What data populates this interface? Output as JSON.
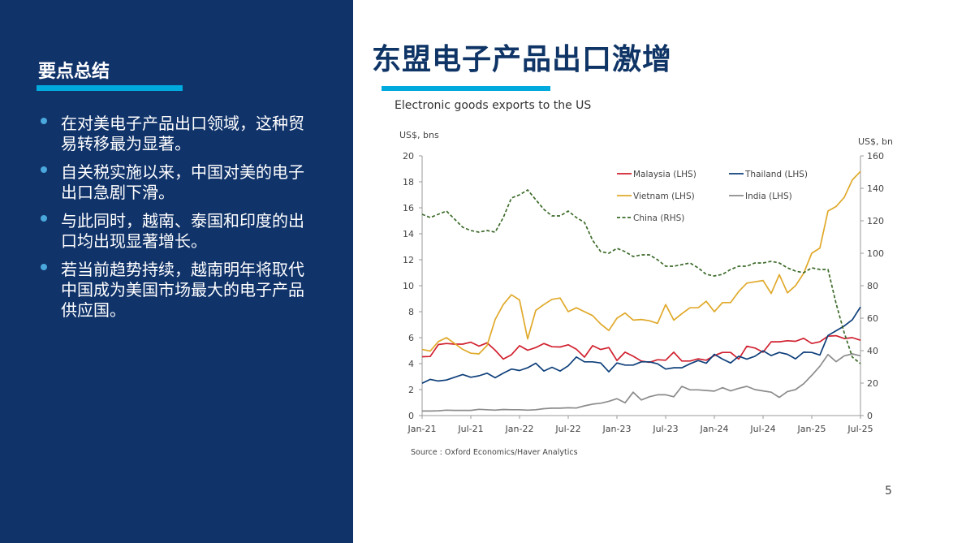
{
  "left_panel": {
    "title": "要点总结",
    "bullets": [
      "在对美电子产品出口领域，这种贸易转移最为显著。",
      "自关税实施以来，中国对美的电子出口急剧下滑。",
      "与此同时，越南、泰国和印度的出口均出现显著增长。",
      "若当前趋势持续，越南明年将取代中国成为美国市场最大的电子产品供应国。"
    ]
  },
  "main": {
    "title": "东盟电子产品出口激增",
    "chart_title": "Electronic goods exports to the US",
    "source": "Source : Oxford Economics/Haver Analytics",
    "page_number": "5"
  },
  "colors": {
    "panel": "#10336a",
    "accent": "#00aadd",
    "malaysia": "#d0202e",
    "thailand": "#0e3f7a",
    "vietnam": "#e0a92a",
    "india": "#8c8c8c",
    "china": "#3d6b2a"
  },
  "chart_data": {
    "type": "line",
    "title": "Electronic goods exports to the US",
    "x_start": "Jan-21",
    "x_end": "Jul-25",
    "frequency": "monthly",
    "x_tick_labels": [
      "Jan-21",
      "Jul-21",
      "Jan-22",
      "Jul-22",
      "Jan-23",
      "Jul-23",
      "Jan-24",
      "Jul-24",
      "Jan-25",
      "Jul-25"
    ],
    "ylabel_left": "US$, bns",
    "ylabel_right": "US$, bns",
    "ylim_left": [
      0,
      20
    ],
    "yticks_left": [
      0,
      2,
      4,
      6,
      8,
      10,
      12,
      14,
      16,
      18,
      20
    ],
    "ylim_right": [
      0,
      160
    ],
    "yticks_right": [
      0,
      20,
      40,
      60,
      80,
      100,
      120,
      140,
      160
    ],
    "grid": false,
    "legend_placement": "top-center",
    "series": [
      {
        "name": "Malaysia (LHS)",
        "axis": "left",
        "style": "solid",
        "color": "#d0202e",
        "values": [
          4.53,
          4.55,
          5.47,
          5.55,
          5.5,
          5.5,
          5.65,
          5.35,
          5.6,
          5.03,
          4.35,
          4.68,
          5.38,
          5.03,
          5.24,
          5.55,
          5.3,
          5.28,
          5.45,
          5.11,
          4.5,
          5.38,
          5.09,
          5.24,
          4.24,
          4.88,
          4.57,
          4.2,
          4.1,
          4.3,
          4.26,
          4.88,
          4.2,
          4.2,
          4.37,
          4.26,
          4.62,
          4.86,
          4.86,
          4.35,
          5.34,
          5.2,
          4.88,
          5.68,
          5.68,
          5.76,
          5.72,
          5.95,
          5.55,
          5.68,
          6.11,
          6.15,
          5.93,
          6.0,
          5.8
        ]
      },
      {
        "name": "Thailand (LHS)",
        "axis": "left",
        "style": "solid",
        "color": "#0e3f7a",
        "values": [
          2.49,
          2.79,
          2.66,
          2.74,
          2.95,
          3.16,
          2.95,
          3.06,
          3.26,
          2.91,
          3.26,
          3.58,
          3.47,
          3.68,
          4.03,
          3.43,
          3.72,
          3.43,
          3.83,
          4.51,
          4.14,
          4.14,
          4.05,
          3.37,
          4.05,
          3.89,
          3.89,
          4.14,
          4.14,
          3.99,
          3.58,
          3.68,
          3.68,
          3.99,
          4.24,
          4.03,
          4.72,
          4.35,
          4.05,
          4.57,
          4.35,
          4.57,
          4.99,
          4.62,
          4.86,
          4.72,
          4.37,
          4.88,
          4.86,
          4.66,
          6.17,
          6.53,
          6.9,
          7.38,
          8.36
        ]
      },
      {
        "name": "Vietnam (LHS)",
        "axis": "left",
        "style": "solid",
        "color": "#e0a92a",
        "values": [
          5.09,
          4.97,
          5.7,
          6.0,
          5.55,
          5.1,
          4.8,
          4.75,
          5.4,
          7.4,
          8.55,
          9.3,
          8.9,
          5.9,
          8.1,
          8.55,
          8.95,
          9.05,
          8.0,
          8.3,
          8.0,
          7.7,
          7.05,
          6.55,
          7.5,
          7.9,
          7.35,
          7.4,
          7.3,
          7.1,
          8.55,
          7.35,
          7.85,
          8.3,
          8.3,
          8.8,
          8.0,
          8.7,
          8.7,
          9.55,
          10.2,
          10.3,
          10.4,
          9.4,
          10.85,
          9.45,
          10.0,
          10.95,
          12.5,
          12.9,
          15.75,
          16.1,
          16.8,
          18.15,
          18.8
        ]
      },
      {
        "name": "India (LHS)",
        "axis": "left",
        "style": "solid",
        "color": "#8c8c8c",
        "values": [
          0.35,
          0.35,
          0.37,
          0.42,
          0.4,
          0.4,
          0.4,
          0.48,
          0.45,
          0.42,
          0.47,
          0.45,
          0.45,
          0.42,
          0.45,
          0.53,
          0.57,
          0.57,
          0.6,
          0.58,
          0.75,
          0.88,
          0.95,
          1.1,
          1.3,
          0.98,
          1.8,
          1.2,
          1.45,
          1.6,
          1.6,
          1.45,
          2.25,
          1.98,
          1.98,
          1.93,
          1.88,
          2.15,
          1.9,
          2.1,
          2.25,
          2.0,
          1.9,
          1.8,
          1.4,
          1.85,
          2.0,
          2.45,
          3.1,
          3.8,
          4.7,
          4.15,
          4.6,
          4.75,
          4.6
        ]
      },
      {
        "name": "China (RHS)",
        "axis": "right",
        "style": "dashed",
        "color": "#3d6b2a",
        "values": [
          124,
          122,
          124,
          126,
          121,
          116,
          114,
          113,
          114,
          113,
          122,
          134,
          136,
          139,
          133,
          127,
          123,
          123,
          126,
          122,
          119,
          108,
          101,
          100,
          103,
          101,
          98,
          99,
          99,
          96,
          92,
          92,
          93,
          94,
          91,
          87,
          86,
          87,
          90,
          92,
          92,
          94,
          94,
          95,
          94,
          91,
          89,
          88,
          91,
          90,
          90,
          69,
          51,
          36,
          32
        ]
      }
    ]
  }
}
